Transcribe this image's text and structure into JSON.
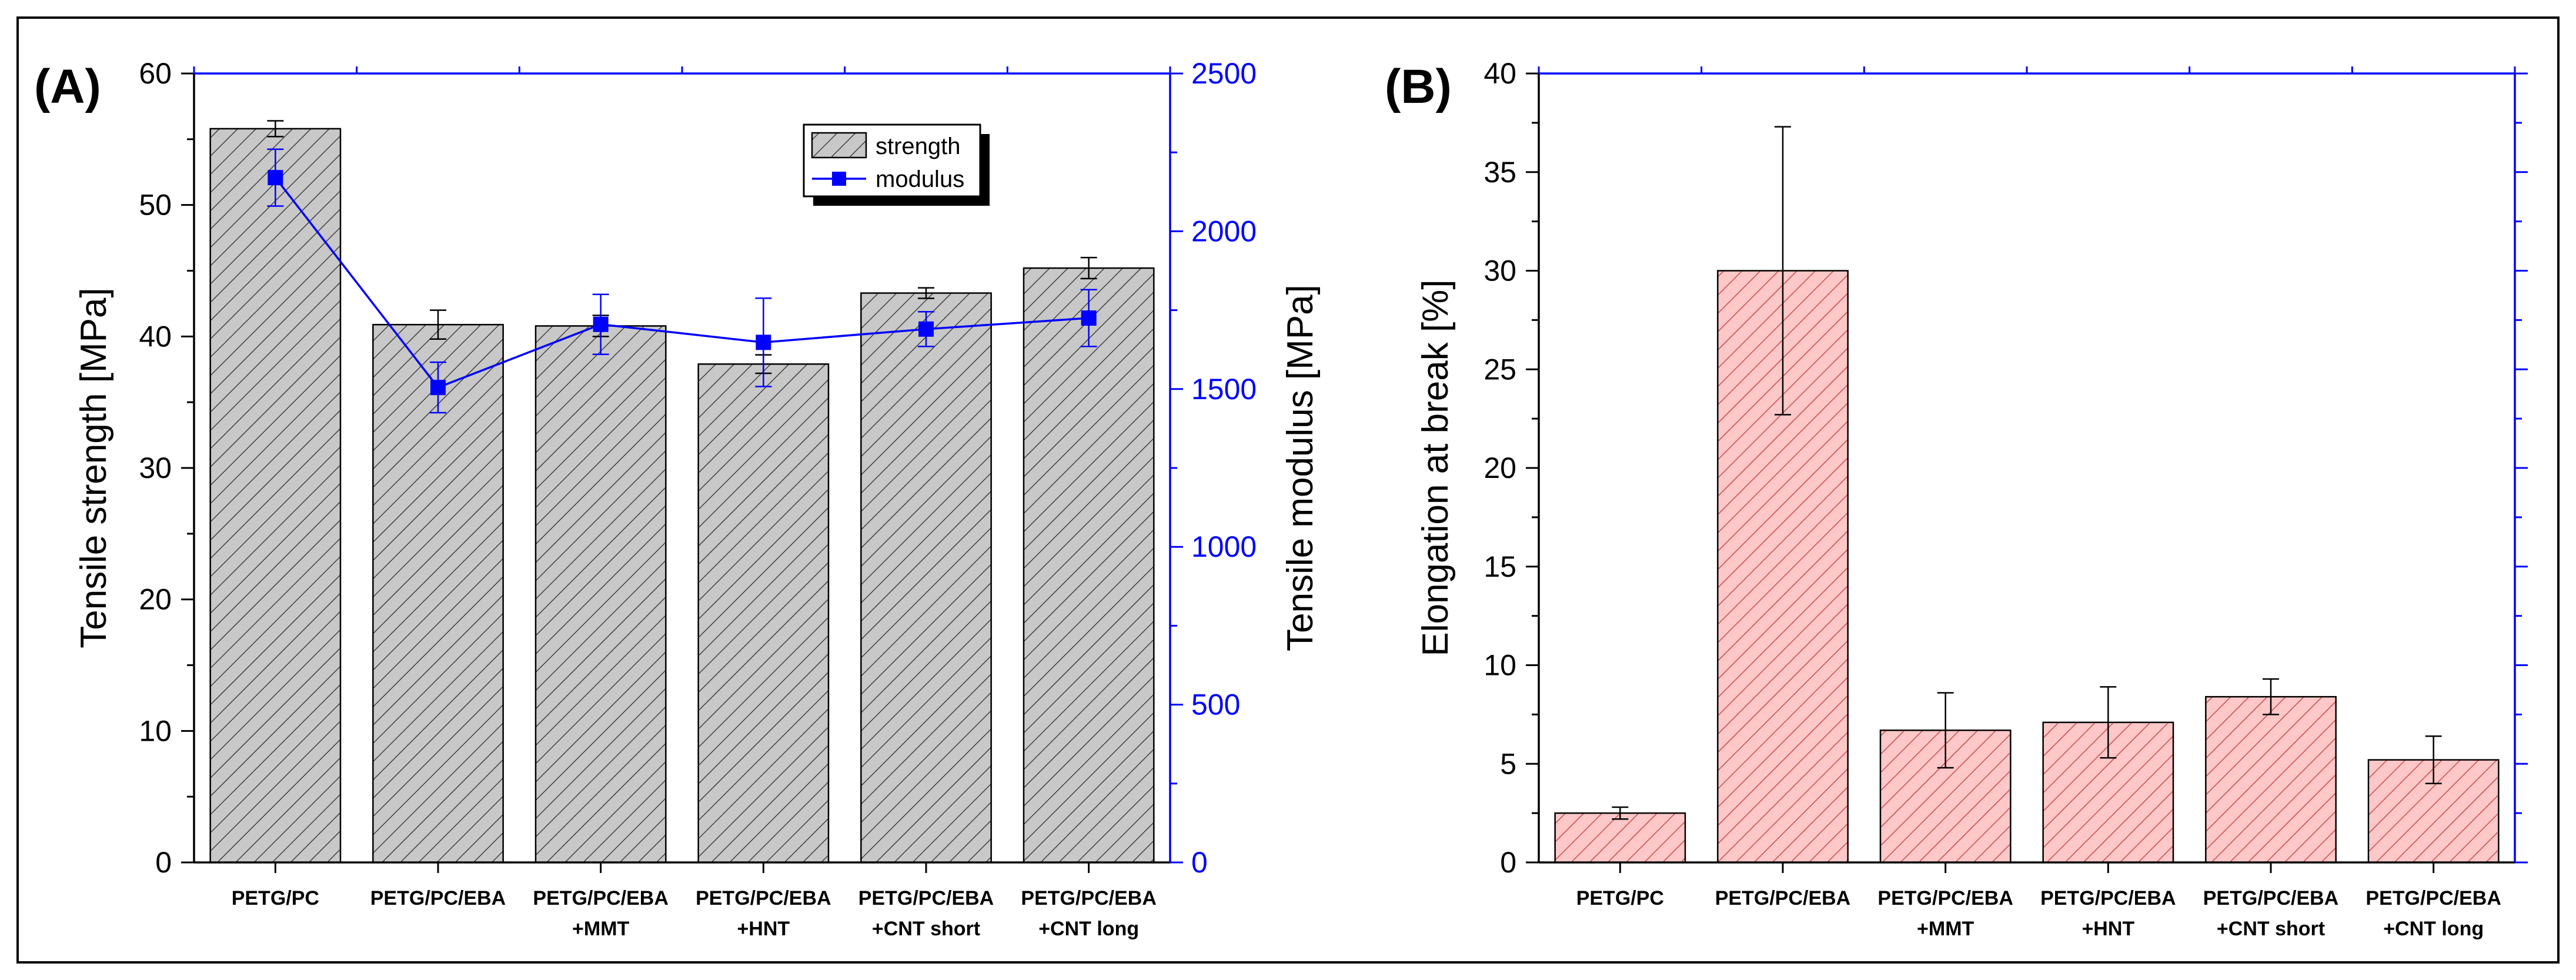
{
  "chart_data": [
    {
      "panel": "(A)",
      "type": "bar",
      "categories": [
        [
          "PETG/PC"
        ],
        [
          "PETG/PC/EBA"
        ],
        [
          "PETG/PC/EBA",
          "+MMT"
        ],
        [
          "PETG/PC/EBA",
          "+HNT"
        ],
        [
          "PETG/PC/EBA",
          "+CNT short"
        ],
        [
          "PETG/PC/EBA",
          "+CNT long"
        ]
      ],
      "series": [
        {
          "name": "strength",
          "kind": "bar",
          "axis": "left",
          "values": [
            55.8,
            40.9,
            40.8,
            37.9,
            43.3,
            45.2
          ],
          "errors": [
            0.6,
            1.1,
            0.8,
            0.7,
            0.4,
            0.8
          ],
          "color": "#c8c8c8"
        },
        {
          "name": "modulus",
          "kind": "line",
          "axis": "right",
          "values": [
            2170,
            1505,
            1705,
            1648,
            1690,
            1725
          ],
          "errors": [
            90,
            80,
            95,
            140,
            55,
            90
          ],
          "color": "#0000ff"
        }
      ],
      "ylabel": "Tensile strength [MPa]",
      "ylim": [
        0,
        60
      ],
      "yticks": [
        0,
        10,
        20,
        30,
        40,
        50,
        60
      ],
      "y2label": "Tensile modulus [MPa]",
      "y2lim": [
        0,
        2500
      ],
      "y2ticks": [
        0,
        500,
        1000,
        1500,
        2000,
        2500
      ],
      "legend_position": "top-right",
      "grid": false
    },
    {
      "panel": "(B)",
      "type": "bar",
      "categories": [
        [
          "PETG/PC"
        ],
        [
          "PETG/PC/EBA"
        ],
        [
          "PETG/PC/EBA",
          "+MMT"
        ],
        [
          "PETG/PC/EBA",
          "+HNT"
        ],
        [
          "PETG/PC/EBA",
          "+CNT short"
        ],
        [
          "PETG/PC/EBA",
          "+CNT long"
        ]
      ],
      "series": [
        {
          "name": "elongation",
          "kind": "bar",
          "axis": "left",
          "values": [
            2.5,
            30.0,
            6.7,
            7.1,
            8.4,
            5.2
          ],
          "errors": [
            0.3,
            7.3,
            1.9,
            1.8,
            0.9,
            1.2
          ],
          "color": "#ffc8c8"
        }
      ],
      "ylabel": "Elongation at break [%]",
      "ylim": [
        0,
        40
      ],
      "yticks": [
        0,
        5,
        10,
        15,
        20,
        25,
        30,
        35,
        40
      ],
      "grid": false
    }
  ]
}
